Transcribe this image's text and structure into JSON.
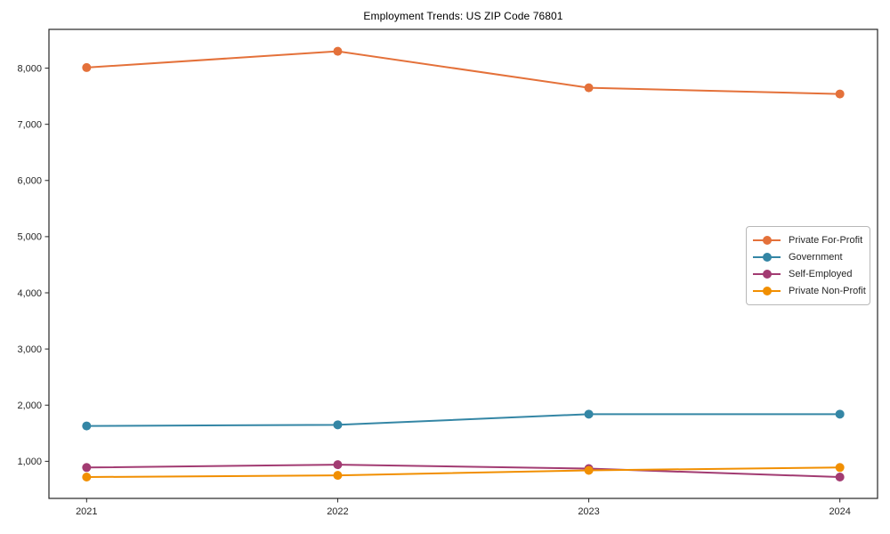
{
  "chart_data": {
    "type": "line",
    "title": "Employment Trends: US ZIP Code 76801",
    "xlabel": "",
    "ylabel": "",
    "x": [
      2021,
      2022,
      2023,
      2024
    ],
    "series": [
      {
        "name": "Private For-Profit",
        "color": "#E4713A",
        "values": [
          8010,
          8300,
          7650,
          7540
        ]
      },
      {
        "name": "Government",
        "color": "#3486A5",
        "values": [
          1630,
          1650,
          1840,
          1840
        ]
      },
      {
        "name": "Self-Employed",
        "color": "#A23B72",
        "values": [
          890,
          940,
          870,
          720
        ]
      },
      {
        "name": "Private Non-Profit",
        "color": "#F18F01",
        "values": [
          720,
          750,
          840,
          890
        ]
      }
    ],
    "xlim": [
      2020.85,
      2024.15
    ],
    "ylim": [
      340,
      8690
    ],
    "xticks": [
      2021,
      2022,
      2023,
      2024
    ],
    "xtick_labels": [
      "2021",
      "2022",
      "2023",
      "2024"
    ],
    "yticks": [
      1000,
      2000,
      3000,
      4000,
      5000,
      6000,
      7000,
      8000
    ],
    "ytick_labels": [
      "1,000",
      "2,000",
      "3,000",
      "4,000",
      "5,000",
      "6,000",
      "7,000",
      "8,000"
    ],
    "grid": false,
    "legend_position": "center-right",
    "marker": "circle",
    "axis_color": "#262626",
    "tick_label_color": "#262626"
  }
}
